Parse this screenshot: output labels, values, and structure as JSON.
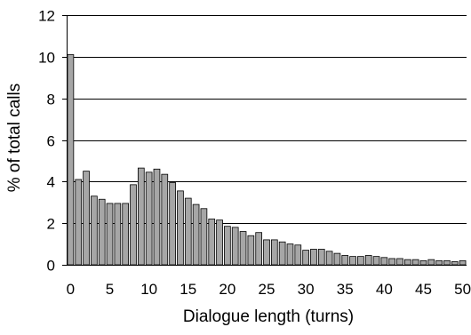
{
  "chart_data": {
    "type": "bar",
    "xlabel": "Dialogue length (turns)",
    "ylabel": "% of total calls",
    "xlim": [
      0,
      50
    ],
    "ylim": [
      0,
      12
    ],
    "x_ticks": [
      0,
      5,
      10,
      15,
      20,
      25,
      30,
      35,
      40,
      45,
      50
    ],
    "y_ticks": [
      0,
      2,
      4,
      6,
      8,
      10,
      12
    ],
    "grid": "horizontal",
    "legend": "none",
    "colors": {
      "bar_fill": "#a6a6a6",
      "bar_stroke": "#000000",
      "grid": "#000000",
      "axis": "#000000"
    },
    "x": [
      0,
      1,
      2,
      3,
      4,
      5,
      6,
      7,
      8,
      9,
      10,
      11,
      12,
      13,
      14,
      15,
      16,
      17,
      18,
      19,
      20,
      21,
      22,
      23,
      24,
      25,
      26,
      27,
      28,
      29,
      30,
      31,
      32,
      33,
      34,
      35,
      36,
      37,
      38,
      39,
      40,
      41,
      42,
      43,
      44,
      45,
      46,
      47,
      48,
      49,
      50
    ],
    "values": [
      10.1,
      4.1,
      4.5,
      3.3,
      3.15,
      2.95,
      2.95,
      2.95,
      3.85,
      4.65,
      4.45,
      4.6,
      4.35,
      3.95,
      3.55,
      3.2,
      2.9,
      2.7,
      2.2,
      2.15,
      1.85,
      1.8,
      1.6,
      1.4,
      1.55,
      1.2,
      1.2,
      1.1,
      1.0,
      0.95,
      0.7,
      0.75,
      0.75,
      0.65,
      0.55,
      0.45,
      0.4,
      0.4,
      0.45,
      0.4,
      0.35,
      0.3,
      0.3,
      0.25,
      0.25,
      0.2,
      0.25,
      0.2,
      0.2,
      0.15,
      0.2
    ]
  }
}
